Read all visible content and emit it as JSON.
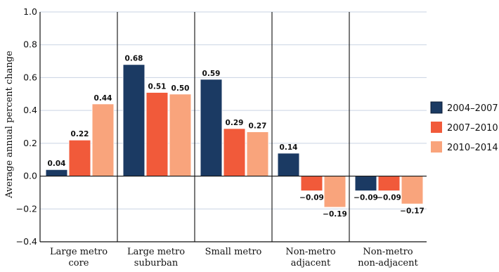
{
  "chart_data": {
    "type": "bar",
    "ylabel": "Average annual percent change",
    "ylim": [
      -0.4,
      1.0
    ],
    "yticks": [
      "−0.4",
      "−0.2",
      "0.0",
      "0.2",
      "0.4",
      "0.6",
      "0.8",
      "1.0"
    ],
    "ytick_values": [
      -0.4,
      -0.2,
      0.0,
      0.2,
      0.4,
      0.6,
      0.8,
      1.0
    ],
    "grid": true,
    "legend_position": "right",
    "categories": [
      [
        "Large metro",
        "core"
      ],
      [
        "Large metro",
        "suburban"
      ],
      [
        "Small metro"
      ],
      [
        "Non-metro",
        "adjacent"
      ],
      [
        "Non-metro",
        "non-adjacent"
      ]
    ],
    "series": [
      {
        "name": "2004–2007",
        "color": "#1b3a63",
        "values": [
          0.04,
          0.68,
          0.59,
          0.14,
          -0.09
        ],
        "labels": [
          "0.04",
          "0.68",
          "0.59",
          "0.14",
          "−0.09"
        ]
      },
      {
        "name": "2007–2010",
        "color": "#f15a3a",
        "values": [
          0.22,
          0.51,
          0.29,
          -0.09,
          -0.09
        ],
        "labels": [
          "0.22",
          "0.51",
          "0.29",
          "−0.09",
          "−0.09"
        ]
      },
      {
        "name": "2010–2014",
        "color": "#f9a47c",
        "values": [
          0.44,
          0.5,
          0.27,
          -0.19,
          -0.17
        ],
        "labels": [
          "0.44",
          "0.50",
          "0.27",
          "−0.19",
          "−0.17"
        ]
      }
    ],
    "highlight_label_color": "#1f4e8c",
    "highlight_label": {
      "series": 0,
      "category": 2
    }
  }
}
